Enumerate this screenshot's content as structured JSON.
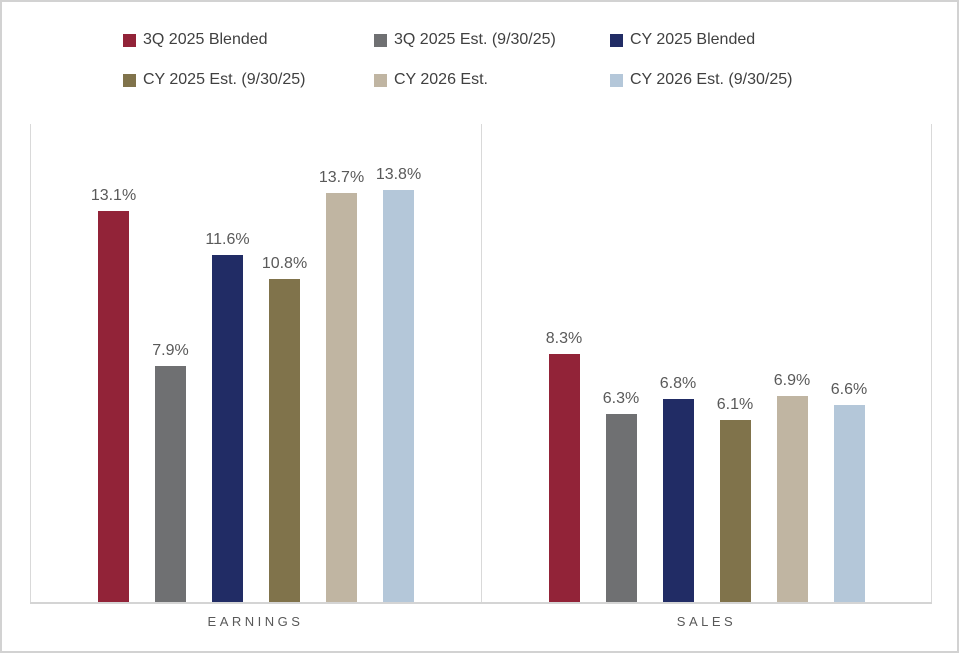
{
  "chart_data": {
    "type": "bar",
    "categories": [
      "EARNINGS",
      "SALES"
    ],
    "series": [
      {
        "name": "3Q 2025 Blended",
        "color": "#922338",
        "values": [
          13.1,
          8.3
        ]
      },
      {
        "name": "3Q 2025 Est. (9/30/25)",
        "color": "#6F7072",
        "values": [
          7.9,
          6.3
        ]
      },
      {
        "name": "CY 2025 Blended",
        "color": "#212C65",
        "values": [
          11.6,
          6.8
        ]
      },
      {
        "name": "CY 2025 Est. (9/30/25)",
        "color": "#80734B",
        "values": [
          10.8,
          6.1
        ]
      },
      {
        "name": "CY 2026 Est.",
        "color": "#C0B5A2",
        "values": [
          13.7,
          6.9
        ]
      },
      {
        "name": "CY 2026 Est. (9/30/25)",
        "color": "#B4C7D9",
        "values": [
          13.8,
          6.6
        ]
      }
    ],
    "value_suffix": "%",
    "ylim": [
      0,
      16
    ],
    "grid": false,
    "data_labels": true,
    "legend_position": "top",
    "legend_rows": [
      [
        0,
        1,
        2
      ],
      [
        3,
        4,
        5
      ]
    ]
  },
  "colors": {
    "legend_text": "#404040",
    "data_label_text": "#595959",
    "category_label_text": "#595959",
    "axis_line": "#D9D9D9",
    "baseline": "#D4D4D4",
    "frame_border": "#D2D2D2",
    "background": "#FFFFFF"
  }
}
